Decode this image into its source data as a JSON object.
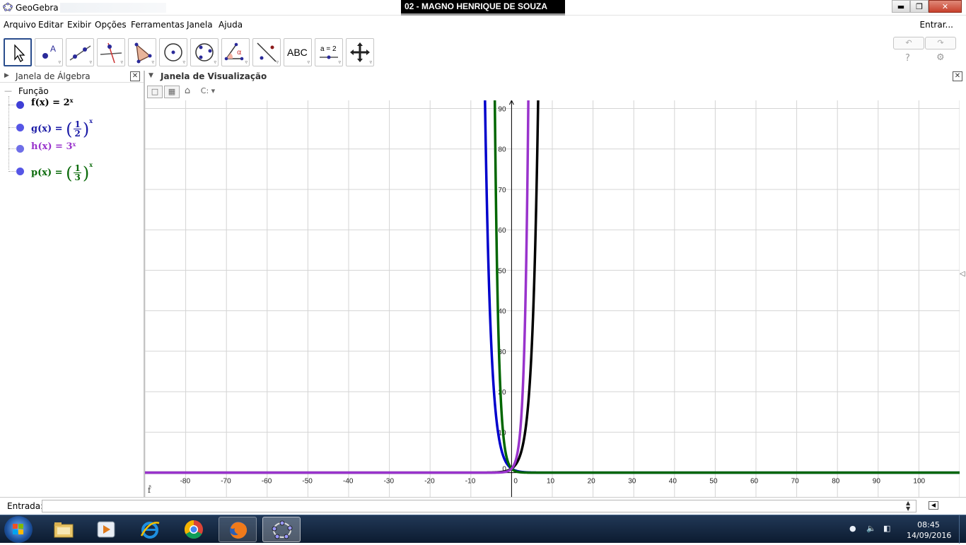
{
  "window": {
    "app_title": "GeoGebra",
    "banner": "02 - MAGNO HENRIQUE DE SOUZA"
  },
  "menu": {
    "items": [
      "Arquivo",
      "Editar",
      "Exibir",
      "Opções",
      "Ferramentas",
      "Janela",
      "Ajuda"
    ],
    "login": "Entrar..."
  },
  "toolbar": {
    "tools": [
      "move-tool",
      "point-tool",
      "line-tool",
      "perpendicular-tool",
      "polygon-tool",
      "circle-center-tool",
      "circle-three-points-tool",
      "angle-tool",
      "reflect-tool",
      "text-tool",
      "slider-tool",
      "move-view-tool"
    ],
    "text_tool_label": "ABC",
    "slider_tool_label": "a = 2",
    "help": "?"
  },
  "algebra": {
    "title": "Janela de Álgebra",
    "group": "Função",
    "functions": [
      {
        "name": "f(x)",
        "base": "2",
        "exponent": "x",
        "color": "#000000",
        "dot": "#3333ff"
      },
      {
        "name": "g(x)",
        "num": "1",
        "den": "2",
        "exponent": "x",
        "color": "#0000cc",
        "dot": "#5555ff"
      },
      {
        "name": "h(x)",
        "base": "3",
        "exponent": "x",
        "color": "#9933cc",
        "dot": "#7777ff"
      },
      {
        "name": "p(x)",
        "num": "1",
        "den": "3",
        "exponent": "x",
        "color": "#006600",
        "dot": "#5555ff"
      }
    ]
  },
  "graphics": {
    "title": "Janela de Visualização",
    "corner_label": "f̂"
  },
  "chart_data": {
    "type": "line",
    "xlim": [
      -90,
      110
    ],
    "ylim": [
      -6,
      92
    ],
    "grid": true,
    "x_ticks": [
      -80,
      -70,
      -60,
      -50,
      -40,
      -30,
      -20,
      -10,
      0,
      10,
      20,
      30,
      40,
      50,
      60,
      70,
      80,
      90,
      100
    ],
    "y_ticks": [
      0,
      10,
      20,
      30,
      40,
      50,
      60,
      70,
      80,
      90
    ],
    "series": [
      {
        "name": "f",
        "expr": "2^x",
        "color": "#000000"
      },
      {
        "name": "g",
        "expr": "(1/2)^x",
        "color": "#0000cc"
      },
      {
        "name": "h",
        "expr": "3^x",
        "color": "#9933cc"
      },
      {
        "name": "p",
        "expr": "(1/3)^x",
        "color": "#006600"
      }
    ]
  },
  "input": {
    "label": "Entrada:",
    "value": ""
  },
  "taskbar": {
    "apps": [
      "explorer",
      "media-player",
      "internet-explorer",
      "chrome",
      "firefox",
      "geogebra"
    ],
    "time": "08:45",
    "date": "14/09/2016"
  }
}
